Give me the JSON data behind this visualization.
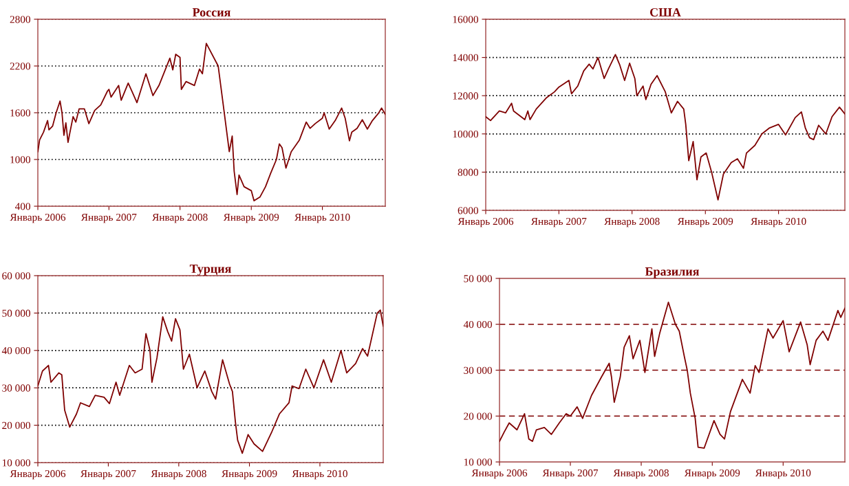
{
  "chart_data": [
    {
      "type": "line",
      "title": "Россия",
      "xlim": [
        "2006-01-01",
        "2010-11-20"
      ],
      "ylim": [
        400,
        2800
      ],
      "yticks": [
        400,
        1000,
        1600,
        2200,
        2800
      ],
      "grid": "y",
      "xticks": [
        {
          "value": "2006-01-01",
          "label": "Январь 2006"
        },
        {
          "value": "2007-01-01",
          "label": "Январь 2007"
        },
        {
          "value": "2008-01-01",
          "label": "Январь 2008"
        },
        {
          "value": "2009-01-01",
          "label": "Январь 2009"
        },
        {
          "value": "2010-01-01",
          "label": "Январь 2010"
        }
      ],
      "series": [
        {
          "color": "#7f0000",
          "x": [
            "2006-01-01",
            "2006-01-10",
            "2006-01-30",
            "2006-02-20",
            "2006-02-27",
            "2006-03-18",
            "2006-04-05",
            "2006-04-25",
            "2006-05-05",
            "2006-05-15",
            "2006-05-25",
            "2006-06-05",
            "2006-06-15",
            "2006-07-01",
            "2006-07-15",
            "2006-08-01",
            "2006-08-28",
            "2006-09-20",
            "2006-10-20",
            "2006-11-20",
            "2006-12-25",
            "2007-01-01",
            "2007-01-12",
            "2007-02-20",
            "2007-03-05",
            "2007-04-10",
            "2007-04-30",
            "2007-05-25",
            "2007-07-10",
            "2007-08-15",
            "2007-09-15",
            "2007-11-10",
            "2007-11-25",
            "2007-12-10",
            "2008-01-01",
            "2008-01-08",
            "2008-02-01",
            "2008-03-15",
            "2008-04-10",
            "2008-04-25",
            "2008-05-15",
            "2008-07-15",
            "2008-08-10",
            "2008-09-10",
            "2008-09-25",
            "2008-10-05",
            "2008-10-20",
            "2008-10-30",
            "2008-11-25",
            "2009-01-01",
            "2009-01-15",
            "2009-02-15",
            "2009-03-15",
            "2009-04-10",
            "2009-05-10",
            "2009-05-25",
            "2009-06-08",
            "2009-06-28",
            "2009-07-25",
            "2009-09-05",
            "2009-10-10",
            "2009-10-30",
            "2009-11-25",
            "2010-01-01",
            "2010-01-10",
            "2010-02-05",
            "2010-03-08",
            "2010-04-10",
            "2010-04-28",
            "2010-05-20",
            "2010-06-01",
            "2010-06-28",
            "2010-07-25",
            "2010-08-20",
            "2010-09-15",
            "2010-10-15",
            "2010-11-01",
            "2010-11-20"
          ],
          "values": [
            1100,
            1250,
            1350,
            1500,
            1380,
            1430,
            1600,
            1750,
            1600,
            1310,
            1470,
            1220,
            1350,
            1550,
            1480,
            1650,
            1650,
            1460,
            1630,
            1700,
            1880,
            1900,
            1800,
            1950,
            1760,
            1980,
            1870,
            1730,
            2100,
            1820,
            1950,
            2300,
            2150,
            2350,
            2310,
            1900,
            2000,
            1950,
            2160,
            2100,
            2490,
            2200,
            1700,
            1100,
            1300,
            850,
            550,
            800,
            650,
            600,
            470,
            520,
            650,
            820,
            1000,
            1200,
            1150,
            890,
            1100,
            1250,
            1480,
            1400,
            1460,
            1530,
            1600,
            1390,
            1500,
            1660,
            1530,
            1240,
            1350,
            1400,
            1510,
            1390,
            1500,
            1590,
            1660,
            1580
          ]
        }
      ]
    },
    {
      "type": "line",
      "title": "США",
      "xlim": [
        "2006-01-01",
        "2010-11-28"
      ],
      "ylim": [
        6000,
        16000
      ],
      "yticks": [
        6000,
        8000,
        10000,
        12000,
        14000,
        16000
      ],
      "grid": "y",
      "xticks": [
        {
          "value": "2006-01-01",
          "label": "Январь 2006"
        },
        {
          "value": "2007-01-01",
          "label": "Январь 2007"
        },
        {
          "value": "2008-01-01",
          "label": "Январь 2008"
        },
        {
          "value": "2009-01-01",
          "label": "Январь 2009"
        },
        {
          "value": "2010-01-01",
          "label": "Январь 2010"
        }
      ],
      "series": [
        {
          "color": "#7f0000",
          "x": [
            "2006-01-01",
            "2006-01-25",
            "2006-03-10",
            "2006-04-10",
            "2006-05-10",
            "2006-05-20",
            "2006-07-15",
            "2006-07-30",
            "2006-08-10",
            "2006-09-10",
            "2006-11-01",
            "2006-12-10",
            "2007-01-01",
            "2007-02-20",
            "2007-03-05",
            "2007-04-05",
            "2007-05-05",
            "2007-06-01",
            "2007-06-20",
            "2007-07-15",
            "2007-08-15",
            "2007-09-05",
            "2007-10-10",
            "2007-11-01",
            "2007-11-25",
            "2007-12-20",
            "2008-01-15",
            "2008-01-25",
            "2008-02-25",
            "2008-03-10",
            "2008-04-05",
            "2008-05-05",
            "2008-06-15",
            "2008-07-15",
            "2008-08-15",
            "2008-09-15",
            "2008-09-25",
            "2008-10-10",
            "2008-11-01",
            "2008-11-20",
            "2008-12-10",
            "2009-01-05",
            "2009-02-01",
            "2009-03-05",
            "2009-04-01",
            "2009-05-10",
            "2009-06-10",
            "2009-07-10",
            "2009-07-25",
            "2009-09-05",
            "2009-10-10",
            "2009-11-15",
            "2010-01-01",
            "2010-02-05",
            "2010-03-25",
            "2010-04-25",
            "2010-05-15",
            "2010-06-05",
            "2010-06-25",
            "2010-07-20",
            "2010-08-25",
            "2010-09-25",
            "2010-11-01",
            "2010-11-28"
          ],
          "values": [
            10900,
            10700,
            11200,
            11100,
            11600,
            11200,
            10750,
            11200,
            10750,
            11300,
            11900,
            12200,
            12450,
            12800,
            12100,
            12500,
            13300,
            13650,
            13400,
            14000,
            12900,
            13400,
            14150,
            13600,
            12800,
            13700,
            12900,
            12000,
            12500,
            11800,
            12600,
            13050,
            12200,
            11100,
            11700,
            11300,
            10500,
            8600,
            9600,
            7600,
            8800,
            9000,
            8000,
            6550,
            7900,
            8500,
            8700,
            8200,
            9000,
            9400,
            10000,
            10300,
            10500,
            9950,
            10850,
            11150,
            10300,
            9800,
            9700,
            10450,
            10000,
            10900,
            11400,
            11050
          ]
        }
      ]
    },
    {
      "type": "line",
      "title": "Турция",
      "xlim": [
        "2006-01-01",
        "2010-11-25"
      ],
      "ylim": [
        10000,
        60000
      ],
      "grid": "y",
      "yticks": [
        {
          "value": 10000,
          "label": "10 000"
        },
        {
          "value": 20000,
          "label": "20 000"
        },
        {
          "value": 30000,
          "label": "30 000"
        },
        {
          "value": 40000,
          "label": "40 000"
        },
        {
          "value": 50000,
          "label": "50 000"
        },
        {
          "value": 60000,
          "label": "60 000"
        }
      ],
      "xticks": [
        {
          "value": "2006-01-01",
          "label": "Январь 2006"
        },
        {
          "value": "2007-01-01",
          "label": "Январь 2007"
        },
        {
          "value": "2008-01-01",
          "label": "Январь 2008"
        },
        {
          "value": "2009-01-01",
          "label": "Январь 2009"
        },
        {
          "value": "2010-01-01",
          "label": "Январь 2010"
        }
      ],
      "series": [
        {
          "color": "#7f0000",
          "x": [
            "2006-01-01",
            "2006-01-25",
            "2006-02-25",
            "2006-03-10",
            "2006-04-20",
            "2006-05-05",
            "2006-05-20",
            "2006-06-15",
            "2006-07-20",
            "2006-08-10",
            "2006-09-25",
            "2006-10-25",
            "2006-12-10",
            "2007-01-07",
            "2007-02-10",
            "2007-03-01",
            "2007-04-20",
            "2007-05-20",
            "2007-06-25",
            "2007-07-15",
            "2007-08-05",
            "2007-08-15",
            "2007-09-10",
            "2007-10-10",
            "2007-11-05",
            "2007-11-25",
            "2007-12-15",
            "2008-01-07",
            "2008-01-25",
            "2008-02-25",
            "2008-04-05",
            "2008-05-15",
            "2008-06-20",
            "2008-07-10",
            "2008-08-15",
            "2008-09-20",
            "2008-10-05",
            "2008-10-20",
            "2008-11-01",
            "2008-11-25",
            "2008-12-25",
            "2009-01-25",
            "2009-03-10",
            "2009-04-25",
            "2009-06-05",
            "2009-07-25",
            "2009-08-10",
            "2009-09-15",
            "2009-10-20",
            "2009-12-01",
            "2010-01-20",
            "2010-03-01",
            "2010-04-20",
            "2010-05-20",
            "2010-07-05",
            "2010-08-10",
            "2010-09-05",
            "2010-10-25",
            "2010-11-10",
            "2010-11-25"
          ],
          "values": [
            30500,
            34500,
            36000,
            31500,
            34000,
            33500,
            24000,
            19500,
            23000,
            26000,
            25000,
            28000,
            27500,
            25800,
            31500,
            28000,
            36000,
            34000,
            35000,
            44500,
            40000,
            31500,
            38000,
            49000,
            45000,
            42500,
            48500,
            45500,
            35000,
            39000,
            30000,
            34500,
            29000,
            27000,
            37500,
            31000,
            29000,
            21000,
            16000,
            12500,
            17500,
            15000,
            13000,
            18000,
            23000,
            26000,
            30500,
            29800,
            35000,
            30000,
            37500,
            31500,
            40000,
            34000,
            36500,
            40500,
            38500,
            50000,
            50800,
            46500
          ]
        }
      ]
    },
    {
      "type": "line",
      "title": "Бразилия",
      "xlim": [
        "2006-01-01",
        "2010-11-15"
      ],
      "ylim": [
        10000,
        50000
      ],
      "yticks": [
        {
          "value": 10000,
          "label": "10 000"
        },
        {
          "value": 20000,
          "label": "20 000"
        },
        {
          "value": 30000,
          "label": "30 000"
        },
        {
          "value": 40000,
          "label": "40 000"
        },
        {
          "value": 50000,
          "label": "50 000"
        }
      ],
      "ref_lines": [
        {
          "axis": "y",
          "value": 20000,
          "color": "#7f0000",
          "line_style": "dashed"
        },
        {
          "axis": "y",
          "value": 30000,
          "color": "#7f0000",
          "line_style": "dashed"
        },
        {
          "axis": "y",
          "value": 40000,
          "color": "#7f0000",
          "line_style": "dashed"
        }
      ],
      "xticks": [
        {
          "value": "2006-01-01",
          "label": "Январь 2006"
        },
        {
          "value": "2007-01-01",
          "label": "Январь 2007"
        },
        {
          "value": "2008-01-01",
          "label": "Январь 2008"
        },
        {
          "value": "2009-01-01",
          "label": "Январь 2009"
        },
        {
          "value": "2010-01-01",
          "label": "Январь 2010"
        }
      ],
      "series": [
        {
          "color": "#7f0000",
          "x": [
            "2006-01-01",
            "2006-01-25",
            "2006-02-20",
            "2006-04-01",
            "2006-05-10",
            "2006-06-01",
            "2006-06-20",
            "2006-07-10",
            "2006-08-20",
            "2006-09-25",
            "2006-11-05",
            "2006-12-10",
            "2007-01-01",
            "2007-02-05",
            "2007-03-05",
            "2007-04-20",
            "2007-06-10",
            "2007-07-20",
            "2007-08-01",
            "2007-08-15",
            "2007-09-15",
            "2007-10-05",
            "2007-11-01",
            "2007-11-20",
            "2007-12-25",
            "2008-01-20",
            "2008-02-25",
            "2008-03-10",
            "2008-04-05",
            "2008-05-20",
            "2008-06-25",
            "2008-07-15",
            "2008-08-10",
            "2008-08-25",
            "2008-09-10",
            "2008-10-05",
            "2008-10-20",
            "2008-11-20",
            "2009-01-10",
            "2009-02-10",
            "2009-03-05",
            "2009-04-05",
            "2009-06-05",
            "2009-07-15",
            "2009-08-10",
            "2009-08-30",
            "2009-10-15",
            "2009-11-10",
            "2010-01-01",
            "2010-02-01",
            "2010-04-01",
            "2010-05-05",
            "2010-05-20",
            "2010-06-20",
            "2010-07-25",
            "2010-08-20",
            "2010-10-10",
            "2010-10-25",
            "2010-11-15"
          ],
          "values": [
            14500,
            16500,
            18500,
            17000,
            20500,
            15000,
            14500,
            17000,
            17500,
            16000,
            18500,
            20500,
            20000,
            22000,
            19500,
            24500,
            28500,
            31500,
            28500,
            23000,
            28500,
            35000,
            37500,
            32500,
            36500,
            29500,
            39000,
            33000,
            38000,
            44800,
            40000,
            38500,
            33000,
            30000,
            25000,
            19500,
            13200,
            13000,
            19000,
            16000,
            15000,
            21000,
            28000,
            25000,
            31000,
            29500,
            39000,
            37000,
            40800,
            34000,
            40500,
            35500,
            31200,
            36500,
            38500,
            36500,
            43000,
            41500,
            43500
          ]
        }
      ]
    }
  ]
}
